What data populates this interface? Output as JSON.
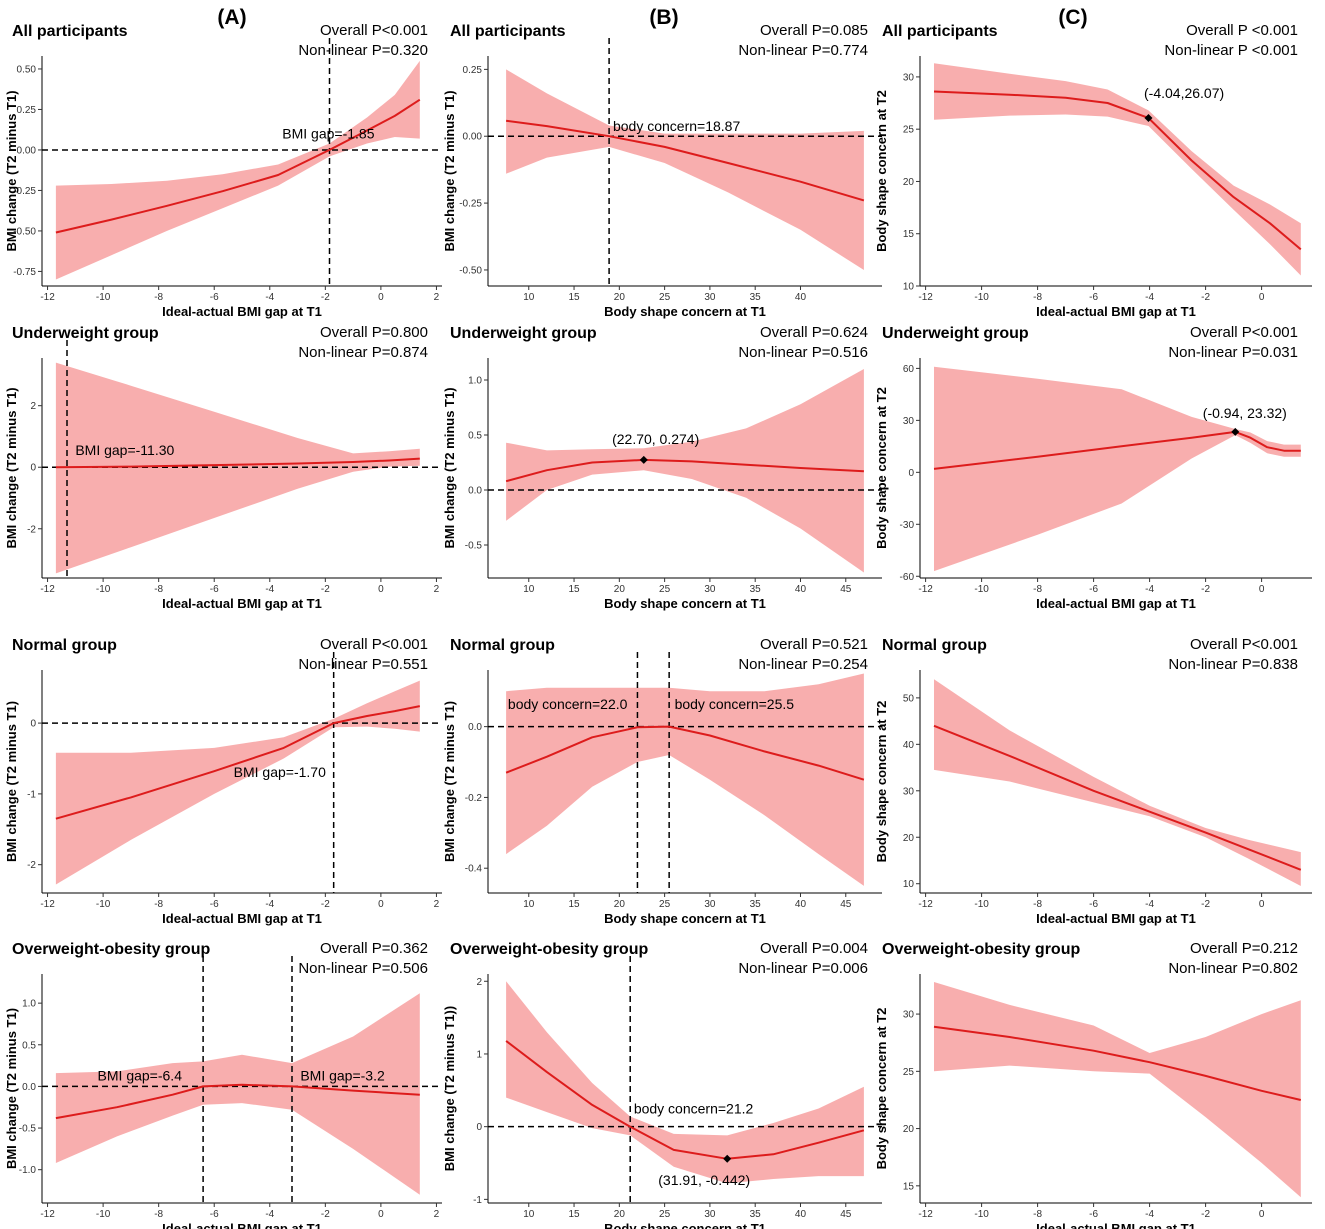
{
  "figure": {
    "column_labels": [
      "(A)",
      "(B)",
      "(C)"
    ],
    "colors": {
      "line": "#dd1c1c",
      "band": "#f8aaaa",
      "ref": "#000000"
    }
  },
  "chart_data": [
    {
      "id": "A1",
      "type": "line",
      "title": "All participants",
      "overall_p": "Overall P<0.001",
      "nonlinear_p": "Non-linear P=0.320",
      "xlabel": "Ideal-actual BMI gap at T1",
      "ylabel": "BMI change (T2 minus T1)",
      "xlim": [
        -12.2,
        2.2
      ],
      "ylim": [
        -0.84,
        0.58
      ],
      "xticks": [
        -12,
        -10,
        -8,
        -6,
        -4,
        -2,
        0,
        2
      ],
      "xtick_labels": [
        "-12",
        "-10",
        "-8",
        "-6",
        "-4",
        "-2",
        "0",
        "2"
      ],
      "yticks": [
        -0.75,
        -0.5,
        -0.25,
        0,
        0.25,
        0.5
      ],
      "ytick_labels": [
        "-0.75",
        "-0.50",
        "-0.25",
        "0.00",
        "0.25",
        "0.50"
      ],
      "x": [
        -11.7,
        -9.7,
        -7.7,
        -5.7,
        -3.7,
        -1.85,
        -0.5,
        0.5,
        1.4
      ],
      "y": [
        -0.51,
        -0.43,
        -0.345,
        -0.255,
        -0.155,
        0.0,
        0.12,
        0.21,
        0.31
      ],
      "lower": [
        -0.8,
        -0.65,
        -0.5,
        -0.36,
        -0.22,
        -0.04,
        0.04,
        0.08,
        0.07
      ],
      "upper": [
        -0.22,
        -0.21,
        -0.19,
        -0.15,
        -0.09,
        0.04,
        0.2,
        0.34,
        0.55
      ],
      "hline": 0,
      "vlines": [
        -1.85
      ],
      "annotations": [
        {
          "text": "BMI gap=-1.85",
          "x": -3.55,
          "y": 0.07
        }
      ],
      "markers": []
    },
    {
      "id": "B1",
      "type": "line",
      "title": "All participants",
      "overall_p": "Overall P=0.085",
      "nonlinear_p": "Non-linear P=0.774",
      "xlabel": "Body shape concern at T1",
      "ylabel": "BMI change (T2 minus T1)",
      "xlim": [
        5.5,
        49
      ],
      "ylim": [
        -0.56,
        0.3
      ],
      "xticks": [
        10,
        15,
        20,
        25,
        30,
        35,
        40
      ],
      "xtick_labels": [
        "10",
        "15",
        "20",
        "25",
        "30",
        "35",
        "40"
      ],
      "yticks": [
        -0.5,
        -0.25,
        0,
        0.25
      ],
      "ytick_labels": [
        "-0.50",
        "-0.25",
        "0.00",
        "0.25"
      ],
      "x": [
        7.5,
        12,
        18.87,
        25,
        32,
        40,
        47
      ],
      "y": [
        0.058,
        0.038,
        0.0,
        -0.04,
        -0.1,
        -0.17,
        -0.24
      ],
      "lower": [
        -0.14,
        -0.08,
        -0.04,
        -0.1,
        -0.21,
        -0.35,
        -0.5
      ],
      "upper": [
        0.25,
        0.16,
        0.04,
        0.01,
        0.01,
        0.01,
        0.02
      ],
      "hline": 0,
      "vlines": [
        18.87
      ],
      "annotations": [
        {
          "text": "body concern=18.87",
          "x": 19.3,
          "y": 0.02
        }
      ],
      "markers": []
    },
    {
      "id": "C1",
      "type": "line",
      "title": "All participants",
      "overall_p": "Overall P <0.001",
      "nonlinear_p": "Non-linear P <0.001",
      "xlabel": "Ideal-actual BMI gap at T1",
      "ylabel": "Body shape concern at T2",
      "xlim": [
        -12.2,
        1.8
      ],
      "ylim": [
        10,
        32
      ],
      "xticks": [
        -12,
        -10,
        -8,
        -6,
        -4,
        -2,
        0
      ],
      "xtick_labels": [
        "-12",
        "-10",
        "-8",
        "-6",
        "-4",
        "-2",
        "0"
      ],
      "yticks": [
        10,
        15,
        20,
        25,
        30
      ],
      "ytick_labels": [
        "10",
        "15",
        "20",
        "25",
        "30"
      ],
      "x": [
        -11.7,
        -9,
        -7,
        -5.5,
        -4.04,
        -2.5,
        -1,
        0.3,
        1.4
      ],
      "y": [
        28.6,
        28.3,
        28.0,
        27.5,
        26.07,
        22.0,
        18.5,
        16.0,
        13.5
      ],
      "lower": [
        25.9,
        26.3,
        26.4,
        26.2,
        25.3,
        21.2,
        17.3,
        14.0,
        11.0
      ],
      "upper": [
        31.3,
        30.3,
        29.6,
        28.8,
        26.8,
        22.9,
        19.6,
        17.8,
        16.0
      ],
      "hline": null,
      "vlines": [],
      "annotations": [
        {
          "text": "(-4.04,26.07)",
          "x": -4.2,
          "y": 28.0
        }
      ],
      "markers": [
        {
          "x": -4.04,
          "y": 26.07
        }
      ]
    },
    {
      "id": "A2",
      "type": "line",
      "title": "Underweight group",
      "overall_p": "Overall P=0.800",
      "nonlinear_p": "Non-linear P=0.874",
      "xlabel": "Ideal-actual BMI gap at T1",
      "ylabel": "BMI change (T2 minus T1)",
      "xlim": [
        -12.2,
        2.2
      ],
      "ylim": [
        -3.6,
        3.55
      ],
      "xticks": [
        -12,
        -10,
        -8,
        -6,
        -4,
        -2,
        0,
        2
      ],
      "xtick_labels": [
        "-12",
        "-10",
        "-8",
        "-6",
        "-4",
        "-2",
        "0",
        "2"
      ],
      "yticks": [
        -2,
        0,
        2
      ],
      "ytick_labels": [
        "-2",
        "0",
        "2"
      ],
      "x": [
        -11.7,
        -9,
        -6,
        -3,
        -1,
        0.3,
        1.4
      ],
      "y": [
        0.0,
        0.02,
        0.07,
        0.12,
        0.17,
        0.22,
        0.28
      ],
      "lower": [
        -3.45,
        -2.6,
        -1.65,
        -0.7,
        -0.15,
        0.02,
        0.05
      ],
      "upper": [
        3.4,
        2.65,
        1.8,
        0.95,
        0.45,
        0.52,
        0.6
      ],
      "hline": 0,
      "vlines": [
        -11.3
      ],
      "annotations": [
        {
          "text": "BMI gap=-11.30",
          "x": -11.0,
          "y": 0.4
        }
      ],
      "markers": []
    },
    {
      "id": "B2",
      "type": "line",
      "title": "Underweight group",
      "overall_p": "Overall P=0.624",
      "nonlinear_p": "Non-linear P=0.516",
      "xlabel": "Body shape concern at T1",
      "ylabel": "BMI change (T2 minus T1)",
      "xlim": [
        5.5,
        49
      ],
      "ylim": [
        -0.8,
        1.2
      ],
      "xticks": [
        10,
        15,
        20,
        25,
        30,
        35,
        40,
        45
      ],
      "xtick_labels": [
        "10",
        "15",
        "20",
        "25",
        "30",
        "35",
        "40",
        "45"
      ],
      "yticks": [
        -0.5,
        0,
        0.5,
        1
      ],
      "ytick_labels": [
        "-0.5",
        "0.0",
        "0.5",
        "1.0"
      ],
      "x": [
        7.5,
        12,
        17,
        22.7,
        28,
        34,
        40,
        47
      ],
      "y": [
        0.08,
        0.18,
        0.25,
        0.274,
        0.26,
        0.23,
        0.2,
        0.17
      ],
      "lower": [
        -0.28,
        0.0,
        0.14,
        0.18,
        0.1,
        -0.07,
        -0.35,
        -0.75
      ],
      "upper": [
        0.43,
        0.36,
        0.37,
        0.38,
        0.44,
        0.56,
        0.78,
        1.1
      ],
      "hline": 0,
      "vlines": [],
      "annotations": [
        {
          "text": "(22.70, 0.274)",
          "x": 19.2,
          "y": 0.42
        }
      ],
      "markers": [
        {
          "x": 22.7,
          "y": 0.274
        }
      ]
    },
    {
      "id": "C2",
      "type": "line",
      "title": "Underweight group",
      "overall_p": "Overall P<0.001",
      "nonlinear_p": "Non-linear P=0.031",
      "xlabel": "Ideal-actual BMI gap at T1",
      "ylabel": "Body shape concern at T2",
      "xlim": [
        -12.2,
        1.8
      ],
      "ylim": [
        -61,
        66
      ],
      "xticks": [
        -12,
        -10,
        -8,
        -6,
        -4,
        -2,
        0
      ],
      "xtick_labels": [
        "-12",
        "-10",
        "-8",
        "-6",
        "-4",
        "-2",
        "0"
      ],
      "yticks": [
        -60,
        -30,
        0,
        30,
        60
      ],
      "ytick_labels": [
        "-60",
        "-30",
        "0",
        "30",
        "60"
      ],
      "x": [
        -11.7,
        -8,
        -5,
        -2.5,
        -0.94,
        -0.4,
        0.2,
        0.8,
        1.4
      ],
      "y": [
        2.0,
        9.0,
        15.0,
        20.0,
        23.32,
        20.0,
        14.5,
        12.5,
        12.5
      ],
      "lower": [
        -57,
        -36,
        -18,
        8.0,
        21.5,
        17.0,
        11.0,
        9.0,
        9.0
      ],
      "upper": [
        61,
        54,
        48,
        32,
        25.0,
        23.0,
        18.0,
        16.0,
        16.0
      ],
      "hline": null,
      "vlines": [],
      "annotations": [
        {
          "text": "(-0.94, 23.32)",
          "x": -2.1,
          "y": 31.5
        }
      ],
      "markers": [
        {
          "x": -0.94,
          "y": 23.32
        }
      ]
    },
    {
      "id": "A3",
      "type": "line",
      "title": "Normal group",
      "overall_p": "Overall P<0.001",
      "nonlinear_p": "Non-linear P=0.551",
      "xlabel": "Ideal-actual BMI gap at T1",
      "ylabel": "BMI change (T2 minus T1)",
      "xlim": [
        -12.2,
        2.2
      ],
      "ylim": [
        -2.4,
        0.75
      ],
      "xticks": [
        -12,
        -10,
        -8,
        -6,
        -4,
        -2,
        0,
        2
      ],
      "xtick_labels": [
        "-12",
        "-10",
        "-8",
        "-6",
        "-4",
        "-2",
        "0",
        "2"
      ],
      "yticks": [
        -2,
        -1,
        0
      ],
      "ytick_labels": [
        "-2",
        "-1",
        "0"
      ],
      "x": [
        -11.7,
        -9,
        -6,
        -3.5,
        -1.7,
        -0.5,
        0.5,
        1.4
      ],
      "y": [
        -1.35,
        -1.05,
        -0.68,
        -0.35,
        0.0,
        0.1,
        0.17,
        0.24
      ],
      "lower": [
        -2.28,
        -1.65,
        -1.0,
        -0.5,
        -0.06,
        -0.05,
        -0.08,
        -0.12
      ],
      "upper": [
        -0.42,
        -0.42,
        -0.35,
        -0.2,
        0.06,
        0.28,
        0.45,
        0.6
      ],
      "hline": 0,
      "vlines": [
        -1.7
      ],
      "annotations": [
        {
          "text": "BMI gap=-1.70",
          "x": -5.3,
          "y": -0.76
        }
      ],
      "markers": []
    },
    {
      "id": "B3",
      "type": "line",
      "title": "Normal group",
      "overall_p": "Overall P=0.521",
      "nonlinear_p": "Non-linear P=0.254",
      "xlabel": "Body shape concern at T1",
      "ylabel": "BMI change (T2 minus T1)",
      "xlim": [
        5.5,
        49
      ],
      "ylim": [
        -0.47,
        0.16
      ],
      "xticks": [
        10,
        15,
        20,
        25,
        30,
        35,
        40,
        45
      ],
      "xtick_labels": [
        "10",
        "15",
        "20",
        "25",
        "30",
        "35",
        "40",
        "45"
      ],
      "yticks": [
        -0.4,
        -0.2,
        0
      ],
      "ytick_labels": [
        "-0.4",
        "-0.2",
        "0.0"
      ],
      "x": [
        7.5,
        12,
        17,
        22,
        25.5,
        30,
        36,
        42,
        47
      ],
      "y": [
        -0.13,
        -0.085,
        -0.03,
        -0.002,
        0.0,
        -0.025,
        -0.07,
        -0.11,
        -0.15
      ],
      "lower": [
        -0.36,
        -0.28,
        -0.17,
        -0.1,
        -0.08,
        -0.15,
        -0.25,
        -0.36,
        -0.45
      ],
      "upper": [
        0.1,
        0.11,
        0.11,
        0.11,
        0.11,
        0.1,
        0.1,
        0.12,
        0.15
      ],
      "hline": 0,
      "vlines": [
        22.0,
        25.5
      ],
      "annotations": [
        {
          "text": "body concern=22.0",
          "x": 7.7,
          "y": 0.05
        },
        {
          "text": "body concern=25.5",
          "x": 26.1,
          "y": 0.05
        }
      ],
      "markers": []
    },
    {
      "id": "C3",
      "type": "line",
      "title": "Normal group",
      "overall_p": "Overall P<0.001",
      "nonlinear_p": "Non-linear P=0.838",
      "xlabel": "Ideal-actual BMI gap at T1",
      "ylabel": "Body shape concern at T2",
      "xlim": [
        -12.2,
        1.8
      ],
      "ylim": [
        8,
        56
      ],
      "xticks": [
        -12,
        -10,
        -8,
        -6,
        -4,
        -2,
        0
      ],
      "xtick_labels": [
        "-12",
        "-10",
        "-8",
        "-6",
        "-4",
        "-2",
        "0"
      ],
      "yticks": [
        10,
        20,
        30,
        40,
        50
      ],
      "ytick_labels": [
        "10",
        "20",
        "30",
        "40",
        "50"
      ],
      "x": [
        -11.7,
        -9,
        -6,
        -4,
        -2,
        -0.5,
        1.4
      ],
      "y": [
        44.0,
        37.5,
        30.0,
        25.5,
        21.0,
        17.5,
        13.0
      ],
      "lower": [
        34.5,
        32.0,
        27.5,
        24.5,
        20.0,
        15.5,
        9.5
      ],
      "upper": [
        54.0,
        43.0,
        33.0,
        26.8,
        22.0,
        19.5,
        16.8
      ],
      "hline": null,
      "vlines": [],
      "annotations": [],
      "markers": []
    },
    {
      "id": "A4",
      "type": "line",
      "title": "Overweight-obesity group",
      "overall_p": "Overall P=0.362",
      "nonlinear_p": "Non-linear P=0.506",
      "xlabel": "Ideal-actual BMI gap at T1",
      "ylabel": "BMI change (T2 minus T1)",
      "xlim": [
        -12.2,
        2.2
      ],
      "ylim": [
        -1.4,
        1.35
      ],
      "xticks": [
        -12,
        -10,
        -8,
        -6,
        -4,
        -2,
        0,
        2
      ],
      "xtick_labels": [
        "-12",
        "-10",
        "-8",
        "-6",
        "-4",
        "-2",
        "0",
        "2"
      ],
      "yticks": [
        -1,
        -0.5,
        0,
        0.5,
        1
      ],
      "ytick_labels": [
        "-1.0",
        "-0.5",
        "0.0",
        "0.5",
        "1.0"
      ],
      "x": [
        -11.7,
        -9.5,
        -7.5,
        -6.4,
        -5,
        -3.2,
        -1,
        1.4
      ],
      "y": [
        -0.38,
        -0.25,
        -0.1,
        0.0,
        0.02,
        0.0,
        -0.05,
        -0.1
      ],
      "lower": [
        -0.92,
        -0.6,
        -0.35,
        -0.22,
        -0.2,
        -0.28,
        -0.75,
        -1.3
      ],
      "upper": [
        0.16,
        0.18,
        0.28,
        0.3,
        0.38,
        0.28,
        0.6,
        1.12
      ],
      "hline": 0,
      "vlines": [
        -6.4,
        -3.2
      ],
      "annotations": [
        {
          "text": "BMI gap=-6.4",
          "x": -10.2,
          "y": 0.07
        },
        {
          "text": "BMI gap=-3.2",
          "x": -2.9,
          "y": 0.07
        }
      ],
      "markers": []
    },
    {
      "id": "B4",
      "type": "line",
      "title": "Overweight-obesity group",
      "overall_p": "Overall P=0.004",
      "nonlinear_p": "Non-linear P=0.006",
      "xlabel": "Body shape concern at T1",
      "ylabel": "BMI change (T2 minus T1))",
      "xlim": [
        5.5,
        49
      ],
      "ylim": [
        -1.05,
        2.1
      ],
      "xticks": [
        10,
        15,
        20,
        25,
        30,
        35,
        40,
        45
      ],
      "xtick_labels": [
        "10",
        "15",
        "20",
        "25",
        "30",
        "35",
        "40",
        "45"
      ],
      "yticks": [
        -1,
        0,
        1,
        2
      ],
      "ytick_labels": [
        "-1",
        "0",
        "1",
        "2"
      ],
      "x": [
        7.5,
        12,
        17,
        21.2,
        26,
        31.91,
        37,
        42,
        47
      ],
      "y": [
        1.18,
        0.75,
        0.3,
        0.0,
        -0.32,
        -0.442,
        -0.38,
        -0.22,
        -0.05
      ],
      "lower": [
        0.4,
        0.2,
        -0.02,
        -0.12,
        -0.55,
        -0.78,
        -0.72,
        -0.68,
        -0.68
      ],
      "upper": [
        2.0,
        1.3,
        0.6,
        0.14,
        -0.1,
        -0.12,
        0.05,
        0.25,
        0.55
      ],
      "hline": 0,
      "vlines": [
        21.2
      ],
      "annotations": [
        {
          "text": "body concern=21.2",
          "x": 21.6,
          "y": 0.18
        },
        {
          "text": "(31.91, -0.442)",
          "x": 24.3,
          "y": -0.8
        }
      ],
      "markers": [
        {
          "x": 31.91,
          "y": -0.442
        }
      ]
    },
    {
      "id": "C4",
      "type": "line",
      "title": "Overweight-obesity group",
      "overall_p": "Overall P=0.212",
      "nonlinear_p": "Non-linear P=0.802",
      "xlabel": "Ideal-actual BMI gap at T1",
      "ylabel": "Body shape concern at T2",
      "xlim": [
        -12.2,
        1.8
      ],
      "ylim": [
        13.5,
        33.5
      ],
      "xticks": [
        -12,
        -10,
        -8,
        -6,
        -4,
        -2,
        0
      ],
      "xtick_labels": [
        "-12",
        "-10",
        "-8",
        "-6",
        "-4",
        "-2",
        "0"
      ],
      "yticks": [
        15,
        20,
        25,
        30
      ],
      "ytick_labels": [
        "15",
        "20",
        "25",
        "30"
      ],
      "x": [
        -11.7,
        -9,
        -6,
        -4,
        -2,
        0,
        1.4
      ],
      "y": [
        28.9,
        28.0,
        26.8,
        25.8,
        24.6,
        23.3,
        22.5
      ],
      "lower": [
        25.0,
        25.5,
        25.0,
        24.8,
        21.0,
        17.0,
        14.0
      ],
      "upper": [
        32.8,
        30.8,
        29.0,
        26.6,
        28.0,
        30.0,
        31.2
      ],
      "hline": null,
      "vlines": [],
      "annotations": [],
      "markers": []
    }
  ]
}
